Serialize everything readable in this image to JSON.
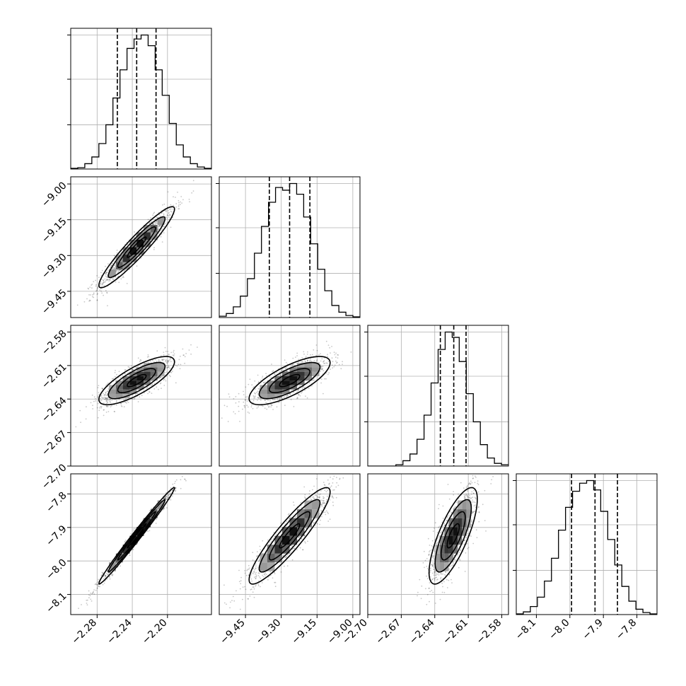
{
  "chart_data": {
    "type": "corner",
    "parameters": [
      {
        "mean": -2.235,
        "sd": 0.0215,
        "range": [
          -2.31,
          -2.15
        ],
        "ticks": [
          -2.28,
          -2.24,
          -2.2
        ],
        "tick_labels": [
          "−2.28",
          "−2.24",
          "−2.20"
        ],
        "quantiles": [
          -2.257,
          -2.235,
          -2.213
        ],
        "histogram": [
          0.005,
          0.01,
          0.04,
          0.09,
          0.19,
          0.33,
          0.53,
          0.74,
          0.9,
          0.97,
          1.0,
          0.92,
          0.74,
          0.55,
          0.34,
          0.18,
          0.09,
          0.04,
          0.015,
          0.005
        ]
      },
      {
        "mean": -9.265,
        "sd": 0.085,
        "range": [
          -9.56,
          -8.97
        ],
        "ticks": [
          -9.45,
          -9.3,
          -9.15,
          -9.0
        ],
        "tick_labels": [
          "−9.45",
          "−9.30",
          "−9.15",
          "−9.00"
        ],
        "quantiles": [
          -9.35,
          -9.265,
          -9.18
        ],
        "histogram": [
          0.01,
          0.03,
          0.08,
          0.16,
          0.29,
          0.48,
          0.68,
          0.86,
          0.97,
          0.95,
          1.0,
          0.92,
          0.75,
          0.55,
          0.36,
          0.2,
          0.09,
          0.04,
          0.015,
          0.005
        ]
      },
      {
        "mean": -2.6235,
        "sd": 0.0108,
        "range": [
          -2.7,
          -2.574
        ],
        "ticks": [
          -2.7,
          -2.67,
          -2.64,
          -2.61,
          -2.58
        ],
        "tick_labels": [
          "−2.70",
          "−2.67",
          "−2.64",
          "−2.61",
          "−2.58"
        ],
        "quantiles": [
          -2.635,
          -2.623,
          -2.612
        ],
        "histogram": [
          0.0,
          0.0,
          0.0,
          0.0,
          0.01,
          0.04,
          0.09,
          0.2,
          0.38,
          0.62,
          0.87,
          1.0,
          0.96,
          0.78,
          0.54,
          0.33,
          0.16,
          0.06,
          0.02,
          0.01
        ]
      },
      {
        "mean": -7.925,
        "sd": 0.072,
        "range": [
          -8.16,
          -7.74
        ],
        "ticks": [
          -8.1,
          -8.0,
          -7.9,
          -7.8
        ],
        "tick_labels": [
          "−8.1",
          "−8.0",
          "−7.9",
          "−7.8"
        ],
        "quantiles": [
          -7.995,
          -7.925,
          -7.858
        ],
        "histogram": [
          0.005,
          0.02,
          0.06,
          0.13,
          0.25,
          0.42,
          0.63,
          0.8,
          0.92,
          0.98,
          1.0,
          0.93,
          0.77,
          0.56,
          0.37,
          0.21,
          0.1,
          0.04,
          0.015,
          0.005
        ]
      }
    ],
    "correlations": [
      [
        1.0,
        0.94,
        0.78,
        0.99
      ],
      [
        0.94,
        1.0,
        0.74,
        0.91
      ],
      [
        0.78,
        0.74,
        1.0,
        0.76
      ],
      [
        0.99,
        0.91,
        0.76,
        1.0
      ]
    ],
    "contour_levels_sigma": [
      0.5,
      1.0,
      1.5,
      2.0
    ],
    "grid": true,
    "colors": {
      "points": "#000000",
      "contours": "#000000",
      "grid": "#b0b0b0",
      "background": "#ffffff"
    }
  }
}
